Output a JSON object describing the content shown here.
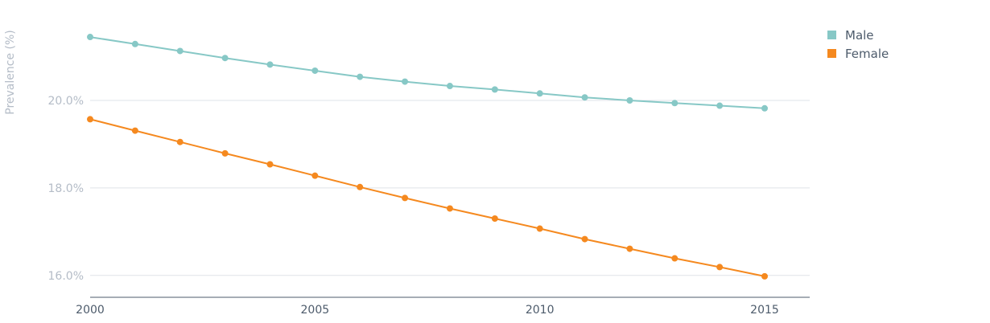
{
  "chart_data": {
    "type": "line",
    "title": "",
    "xlabel": "",
    "ylabel": "Prevalence (%)",
    "x": [
      2000,
      2001,
      2002,
      2003,
      2004,
      2005,
      2006,
      2007,
      2008,
      2009,
      2010,
      2011,
      2012,
      2013,
      2014,
      2015
    ],
    "x_ticks": [
      "2000",
      "2005",
      "2010",
      "2015"
    ],
    "y_ticks": [
      "16.0%",
      "18.0%",
      "20.0%"
    ],
    "ylim": [
      15.5,
      21.8
    ],
    "grid": true,
    "legend_position": "top-right",
    "series": [
      {
        "name": "Male",
        "color": "#87c8c6",
        "values": [
          21.45,
          21.29,
          21.13,
          20.97,
          20.82,
          20.68,
          20.54,
          20.43,
          20.33,
          20.25,
          20.16,
          20.07,
          20.0,
          19.94,
          19.88,
          19.82
        ]
      },
      {
        "name": "Female",
        "color": "#f5891f",
        "values": [
          19.57,
          19.31,
          19.05,
          18.79,
          18.54,
          18.28,
          18.02,
          17.77,
          17.53,
          17.3,
          17.07,
          16.83,
          16.61,
          16.39,
          16.19,
          15.98
        ]
      }
    ]
  }
}
